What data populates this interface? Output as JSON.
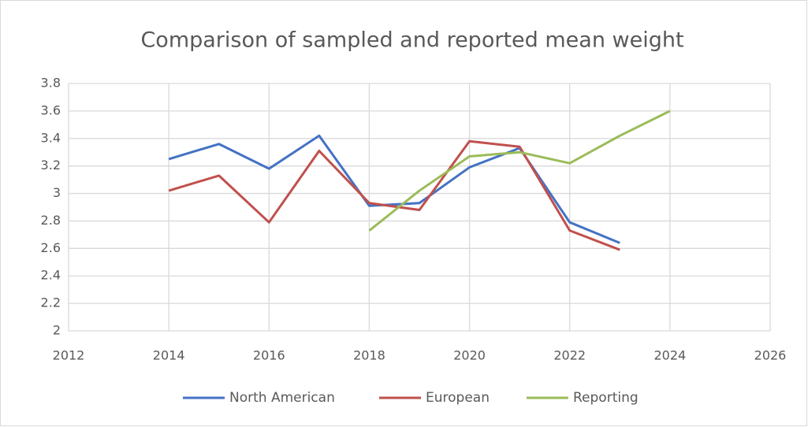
{
  "chart_data": {
    "type": "line",
    "title": "Comparison of sampled and reported mean weight",
    "x": [
      2014,
      2015,
      2016,
      2017,
      2018,
      2019,
      2020,
      2021,
      2022,
      2023,
      2024
    ],
    "series": [
      {
        "name": "North American",
        "color": "#4472c4",
        "values": [
          3.25,
          3.36,
          3.18,
          3.42,
          2.91,
          2.93,
          3.19,
          3.33,
          2.79,
          2.64,
          null
        ]
      },
      {
        "name": "European",
        "color": "#c0504d",
        "values": [
          3.02,
          3.13,
          2.79,
          3.31,
          2.93,
          2.88,
          3.38,
          3.34,
          2.73,
          2.59,
          null
        ]
      },
      {
        "name": "Reporting",
        "color": "#9bbb59",
        "values": [
          null,
          null,
          null,
          null,
          2.73,
          3.02,
          3.27,
          3.3,
          3.22,
          3.42,
          3.6
        ]
      }
    ],
    "xlim": [
      2012,
      2026
    ],
    "xticks": [
      2012,
      2014,
      2016,
      2018,
      2020,
      2022,
      2024,
      2026
    ],
    "ylim": [
      2,
      3.8
    ],
    "yticks": [
      2,
      2.2,
      2.4,
      2.6,
      2.8,
      3,
      3.2,
      3.4,
      3.6,
      3.8
    ],
    "grid": true,
    "legend": "bottom"
  }
}
